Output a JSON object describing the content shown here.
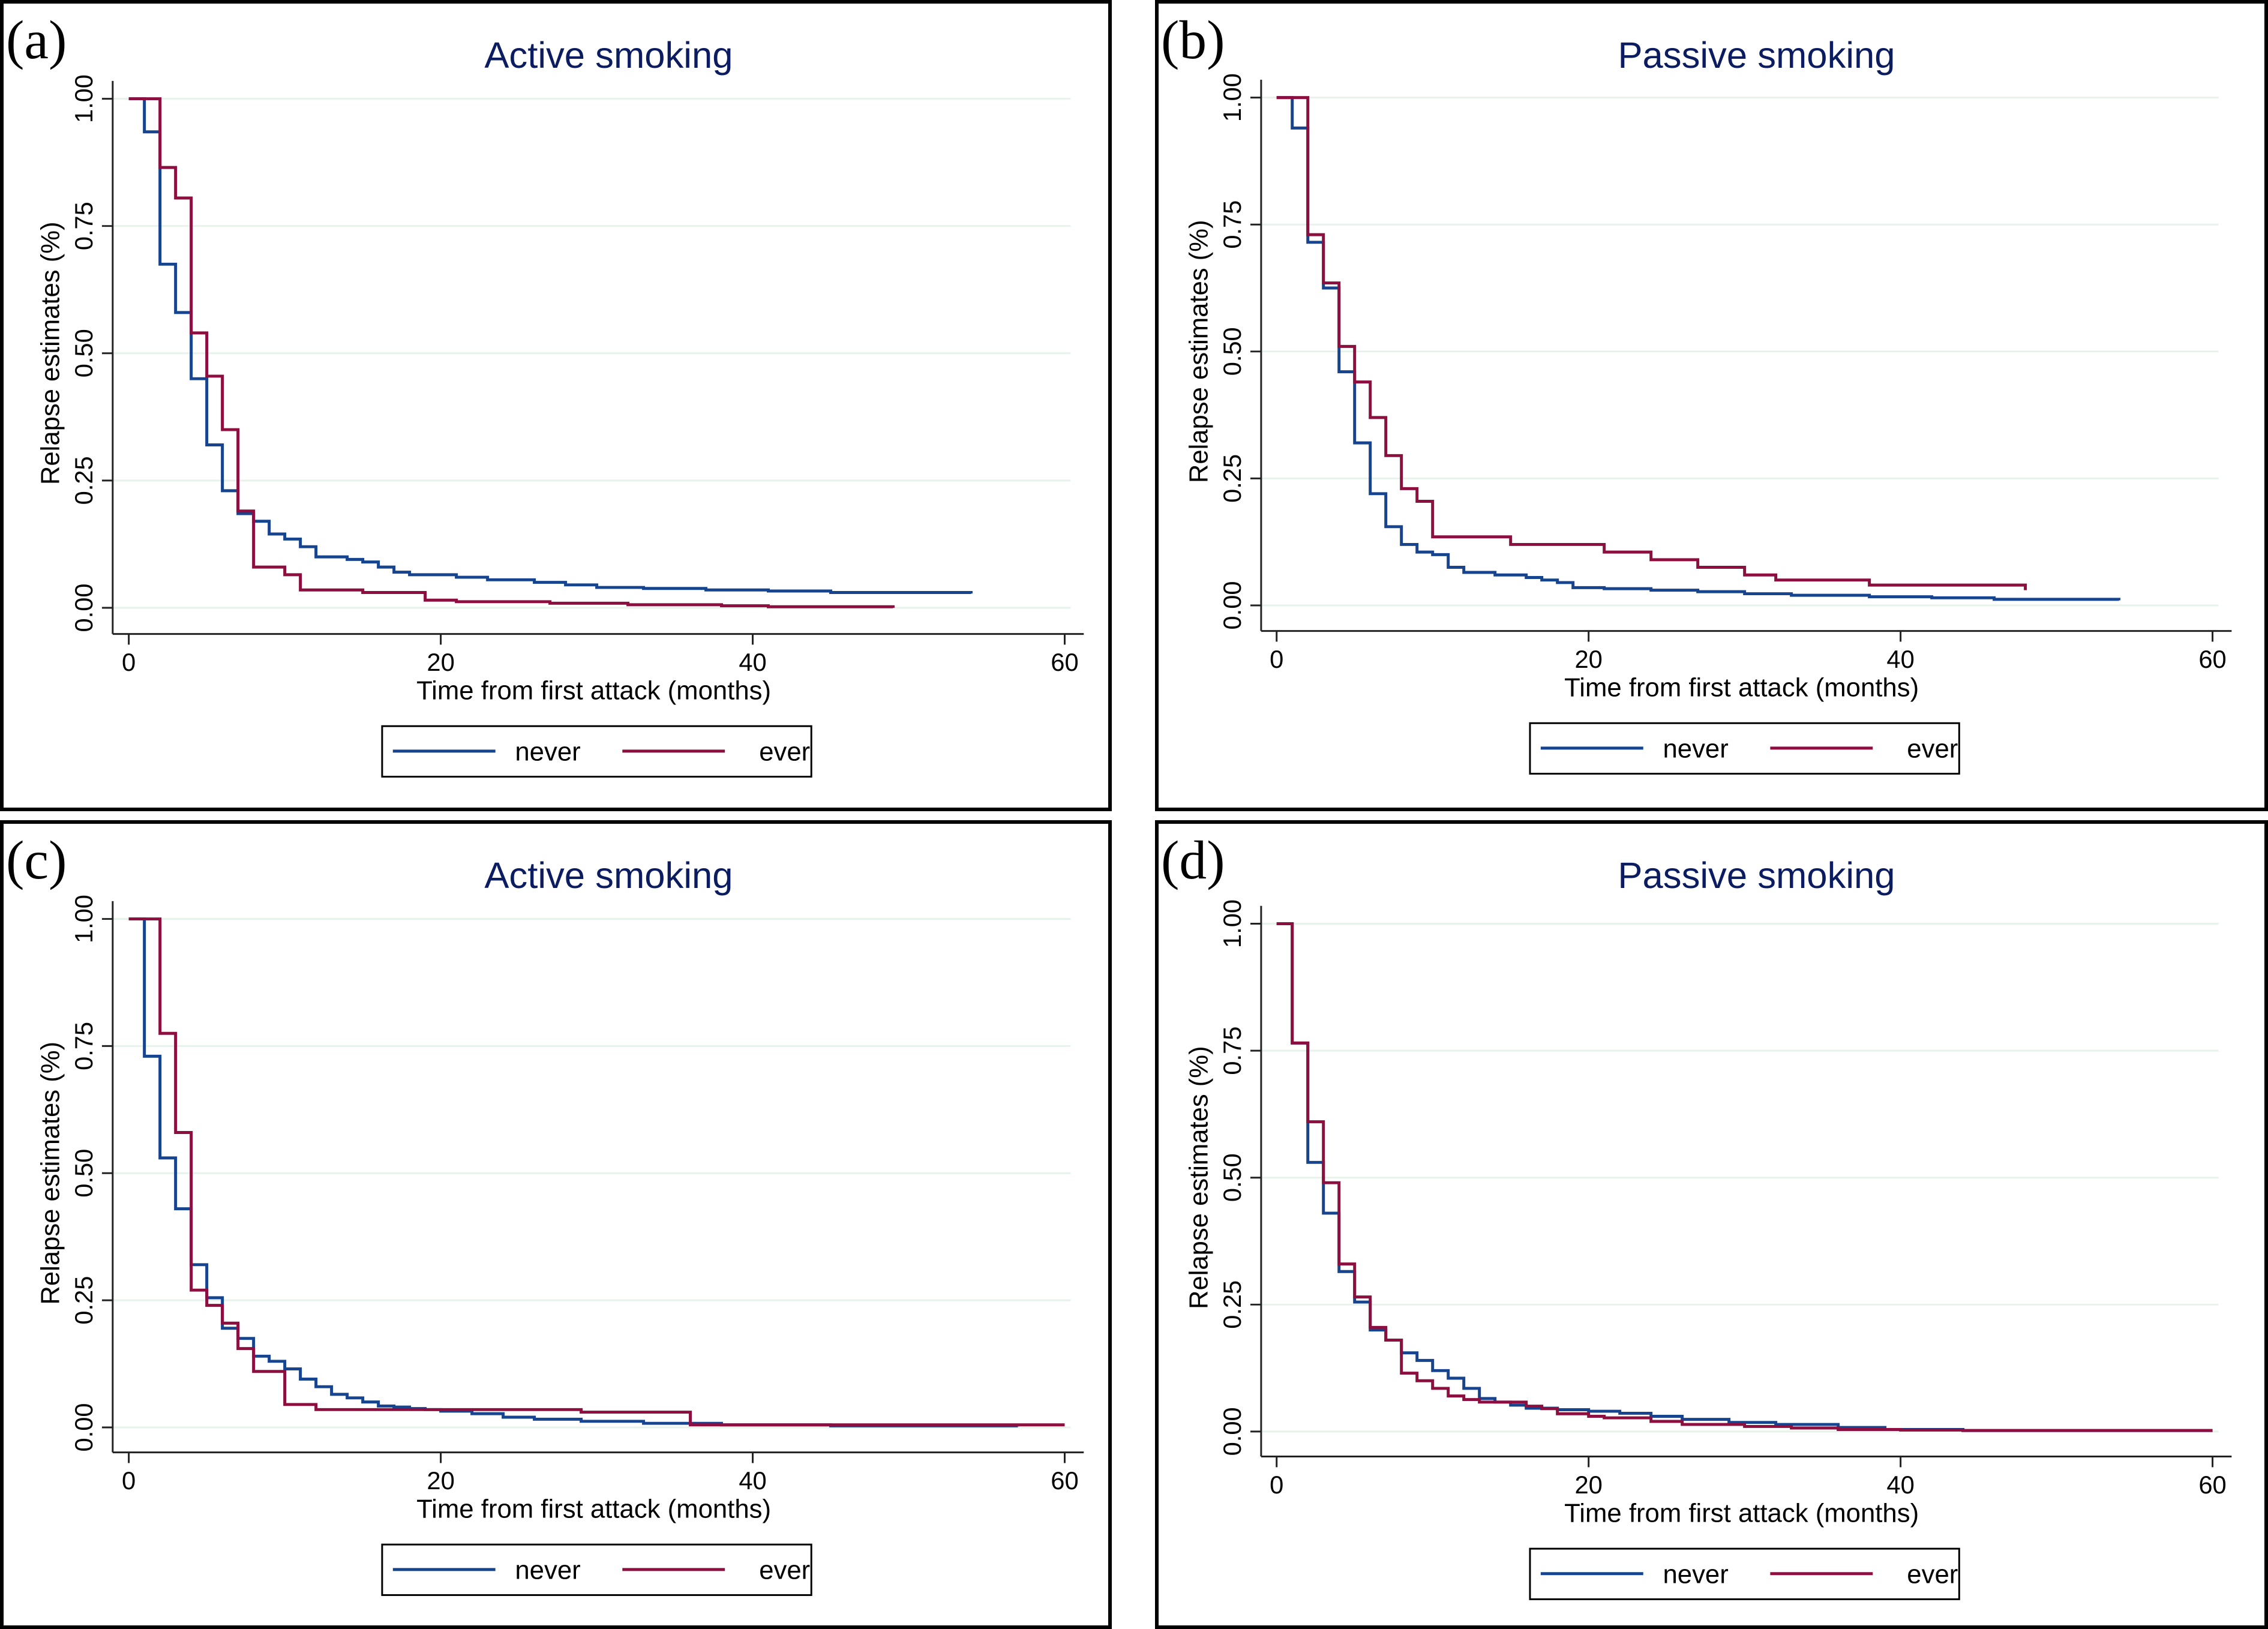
{
  "figure": {
    "colors": {
      "never": "#16448f",
      "ever": "#8c0f3f",
      "title": "#0b1c61",
      "grid": "#e6f2ea"
    }
  },
  "chart_data": [
    {
      "panel_label": "(a)",
      "type": "line",
      "step": true,
      "title": "Active smoking",
      "xlabel": "Time from first attack  (months)",
      "ylabel": "Relapse estimates (%)",
      "xlim": [
        0,
        60
      ],
      "ylim": [
        0,
        1
      ],
      "xticks": [
        0,
        20,
        40,
        60
      ],
      "xtick_labels": [
        "0",
        "20",
        "40",
        "60"
      ],
      "yticks": [
        0,
        0.25,
        0.5,
        0.75,
        1
      ],
      "ytick_labels": [
        "0.00",
        "0.25",
        "0.50",
        "0.75",
        "1.00"
      ],
      "grid": true,
      "legend": {
        "placement": "bottom",
        "entries": [
          "never",
          "ever"
        ]
      },
      "series": [
        {
          "name": "never",
          "color": "#16448f",
          "x": [
            0,
            1,
            2,
            3,
            4,
            5,
            6,
            7,
            8,
            9,
            10,
            11,
            12,
            14,
            15,
            16,
            17,
            18,
            21,
            23,
            26,
            28,
            30,
            33,
            37,
            41,
            45,
            54
          ],
          "y": [
            1.0,
            0.935,
            0.675,
            0.58,
            0.45,
            0.32,
            0.23,
            0.185,
            0.17,
            0.145,
            0.135,
            0.12,
            0.1,
            0.095,
            0.09,
            0.08,
            0.07,
            0.065,
            0.06,
            0.055,
            0.05,
            0.045,
            0.04,
            0.038,
            0.035,
            0.033,
            0.03,
            0.028
          ]
        },
        {
          "name": "ever",
          "color": "#8c0f3f",
          "x": [
            0,
            2,
            3,
            4,
            5,
            6,
            7,
            8,
            10,
            11,
            15,
            19,
            21,
            27,
            32,
            38,
            41,
            49
          ],
          "y": [
            1.0,
            0.865,
            0.805,
            0.54,
            0.455,
            0.35,
            0.19,
            0.08,
            0.065,
            0.035,
            0.03,
            0.015,
            0.012,
            0.009,
            0.006,
            0.004,
            0.002,
            0.0
          ]
        }
      ]
    },
    {
      "panel_label": "(b)",
      "type": "line",
      "step": true,
      "title": "Passive smoking",
      "xlabel": "Time from first attack  (months)",
      "ylabel": "Relapse estimates (%)",
      "xlim": [
        0,
        60
      ],
      "ylim": [
        0,
        1
      ],
      "xticks": [
        0,
        20,
        40,
        60
      ],
      "xtick_labels": [
        "0",
        "20",
        "40",
        "60"
      ],
      "yticks": [
        0,
        0.25,
        0.5,
        0.75,
        1
      ],
      "ytick_labels": [
        "0.00",
        "0.25",
        "0.50",
        "0.75",
        "1.00"
      ],
      "grid": true,
      "legend": {
        "placement": "bottom",
        "entries": [
          "never",
          "ever"
        ]
      },
      "series": [
        {
          "name": "never",
          "color": "#16448f",
          "x": [
            0,
            1,
            2,
            3,
            4,
            5,
            6,
            7,
            8,
            9,
            10,
            11,
            12,
            14,
            16,
            17,
            18,
            19,
            21,
            24,
            27,
            30,
            33,
            38,
            42,
            46,
            54
          ],
          "y": [
            1.0,
            0.94,
            0.715,
            0.625,
            0.46,
            0.32,
            0.22,
            0.155,
            0.12,
            0.105,
            0.1,
            0.075,
            0.065,
            0.06,
            0.055,
            0.05,
            0.045,
            0.035,
            0.033,
            0.03,
            0.027,
            0.023,
            0.02,
            0.017,
            0.015,
            0.012,
            0.01
          ]
        },
        {
          "name": "ever",
          "color": "#8c0f3f",
          "x": [
            0,
            2,
            3,
            4,
            5,
            6,
            7,
            8,
            9,
            10,
            15,
            21,
            24,
            27,
            30,
            32,
            38,
            48
          ],
          "y": [
            1.0,
            0.73,
            0.635,
            0.51,
            0.44,
            0.37,
            0.295,
            0.23,
            0.205,
            0.135,
            0.12,
            0.105,
            0.09,
            0.075,
            0.06,
            0.05,
            0.04,
            0.03
          ]
        }
      ]
    },
    {
      "panel_label": "(c)",
      "type": "line",
      "step": true,
      "title": "Active smoking",
      "xlabel": "Time from first attack  (months)",
      "ylabel": "Relapse estimates (%)",
      "xlim": [
        0,
        60
      ],
      "ylim": [
        0,
        1
      ],
      "xticks": [
        0,
        20,
        40,
        60
      ],
      "xtick_labels": [
        "0",
        "20",
        "40",
        "60"
      ],
      "yticks": [
        0,
        0.25,
        0.5,
        0.75,
        1
      ],
      "ytick_labels": [
        "0.00",
        "0.25",
        "0.50",
        "0.75",
        "1.00"
      ],
      "grid": true,
      "legend": {
        "placement": "bottom",
        "entries": [
          "never",
          "ever"
        ]
      },
      "series": [
        {
          "name": "never",
          "color": "#16448f",
          "x": [
            0,
            1,
            2,
            3,
            4,
            5,
            6,
            7,
            8,
            9,
            10,
            11,
            12,
            13,
            14,
            15,
            16,
            17,
            18,
            19,
            20,
            22,
            24,
            26,
            29,
            33,
            38,
            45,
            57
          ],
          "y": [
            1.0,
            0.73,
            0.53,
            0.43,
            0.32,
            0.255,
            0.195,
            0.175,
            0.14,
            0.13,
            0.115,
            0.095,
            0.08,
            0.065,
            0.058,
            0.05,
            0.042,
            0.04,
            0.037,
            0.035,
            0.032,
            0.027,
            0.02,
            0.016,
            0.012,
            0.008,
            0.005,
            0.003,
            0.002
          ]
        },
        {
          "name": "ever",
          "color": "#8c0f3f",
          "x": [
            0,
            2,
            3,
            4,
            5,
            6,
            7,
            8,
            10,
            12,
            29,
            36,
            60
          ],
          "y": [
            1.0,
            0.775,
            0.58,
            0.27,
            0.24,
            0.205,
            0.155,
            0.11,
            0.045,
            0.035,
            0.03,
            0.005,
            0.005
          ]
        }
      ]
    },
    {
      "panel_label": "(d)",
      "type": "line",
      "step": true,
      "title": "Passive smoking",
      "xlabel": "Time from first attack  (months)",
      "ylabel": "Relapse estimates (%)",
      "xlim": [
        0,
        60
      ],
      "ylim": [
        0,
        1
      ],
      "xticks": [
        0,
        20,
        40,
        60
      ],
      "xtick_labels": [
        "0",
        "20",
        "40",
        "60"
      ],
      "yticks": [
        0,
        0.25,
        0.5,
        0.75,
        1
      ],
      "ytick_labels": [
        "0.00",
        "0.25",
        "0.50",
        "0.75",
        "1.00"
      ],
      "grid": true,
      "legend": {
        "placement": "bottom",
        "entries": [
          "never",
          "ever"
        ]
      },
      "series": [
        {
          "name": "never",
          "color": "#16448f",
          "x": [
            0,
            1,
            2,
            3,
            4,
            5,
            6,
            7,
            8,
            9,
            10,
            11,
            12,
            13,
            14,
            15,
            16,
            18,
            20,
            22,
            24,
            26,
            29,
            32,
            36,
            39,
            44,
            60
          ],
          "y": [
            1.0,
            0.765,
            0.53,
            0.43,
            0.315,
            0.255,
            0.2,
            0.18,
            0.155,
            0.14,
            0.12,
            0.105,
            0.085,
            0.065,
            0.058,
            0.052,
            0.046,
            0.043,
            0.04,
            0.036,
            0.03,
            0.024,
            0.018,
            0.014,
            0.008,
            0.004,
            0.002,
            0.002
          ]
        },
        {
          "name": "ever",
          "color": "#8c0f3f",
          "x": [
            0,
            1,
            2,
            3,
            4,
            5,
            6,
            7,
            8,
            9,
            10,
            11,
            12,
            13,
            16,
            17,
            18,
            20,
            21,
            24,
            26,
            30,
            33,
            36,
            40,
            44,
            60
          ],
          "y": [
            1.0,
            0.765,
            0.61,
            0.49,
            0.33,
            0.265,
            0.205,
            0.18,
            0.115,
            0.1,
            0.085,
            0.07,
            0.063,
            0.058,
            0.05,
            0.045,
            0.035,
            0.03,
            0.027,
            0.02,
            0.014,
            0.01,
            0.007,
            0.004,
            0.003,
            0.002,
            0.002
          ]
        }
      ]
    }
  ]
}
